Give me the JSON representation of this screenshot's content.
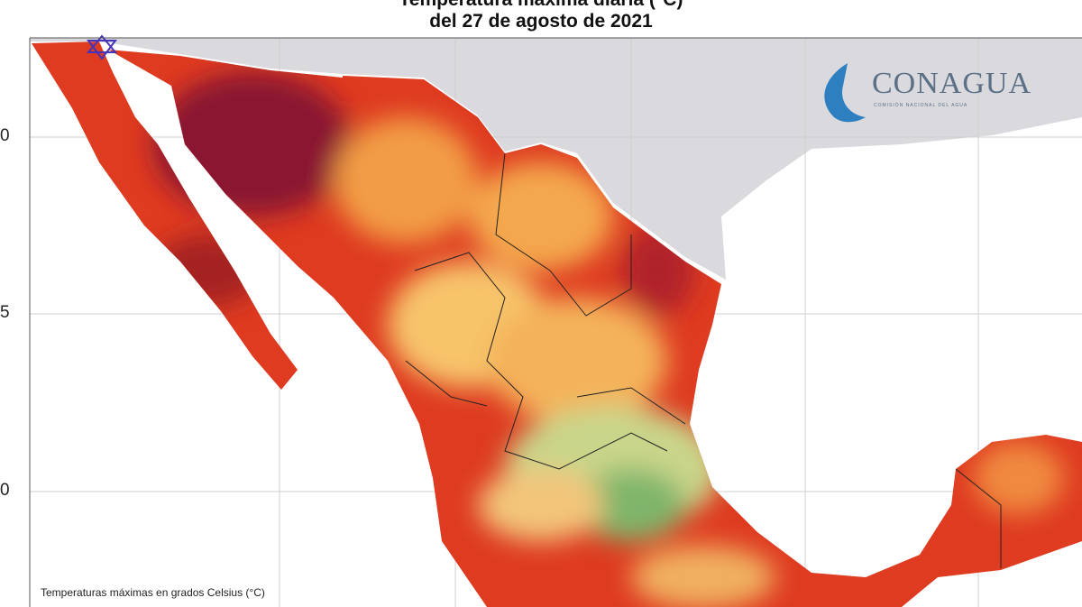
{
  "header": {
    "title": "Temperatura máxima diaria (°C)",
    "subtitle": "del 27 de agosto de 2021"
  },
  "logo": {
    "name": "CONAGUA",
    "tagline": "COMISIÓN NACIONAL DEL AGUA"
  },
  "axis": {
    "lat_labels": [
      "0",
      "5",
      "0"
    ]
  },
  "footer": {
    "note": "Temperaturas máximas en grados Celsius (°C)"
  }
}
